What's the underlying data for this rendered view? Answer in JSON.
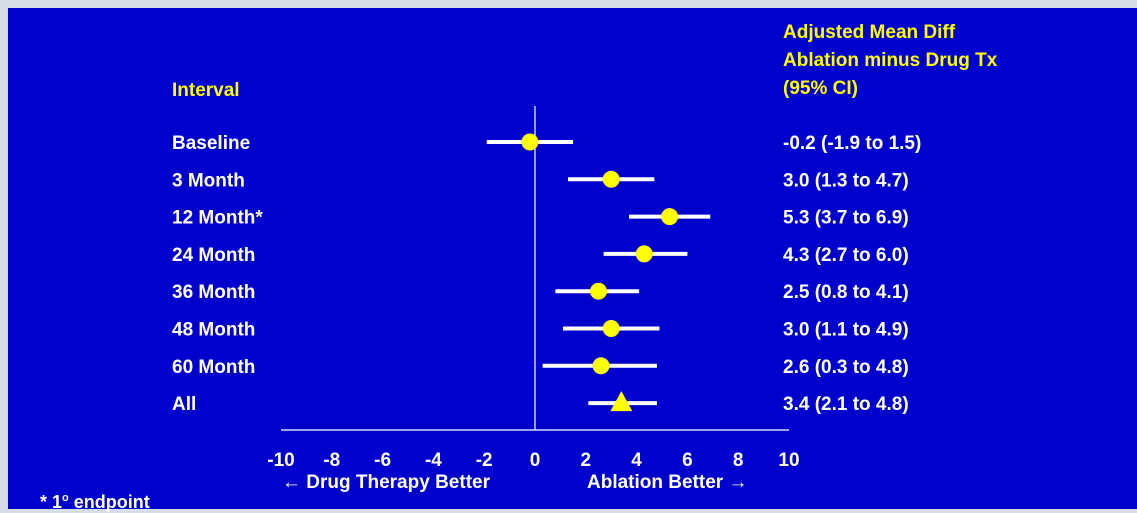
{
  "chart_data": {
    "type": "forest",
    "headers": {
      "interval": "Interval",
      "result_lines": [
        "Adjusted Mean Diff",
        "Ablation minus Drug Tx",
        "(95% CI)"
      ]
    },
    "rows": [
      {
        "label": "Baseline",
        "estimate": -0.2,
        "lower": -1.9,
        "upper": 1.5,
        "text": "-0.2 (-1.9 to 1.5)",
        "marker": "circle"
      },
      {
        "label": "3 Month",
        "estimate": 3.0,
        "lower": 1.3,
        "upper": 4.7,
        "text": "3.0 (1.3 to 4.7)",
        "marker": "circle"
      },
      {
        "label": "12 Month*",
        "estimate": 5.3,
        "lower": 3.7,
        "upper": 6.9,
        "text": "5.3 (3.7 to 6.9)",
        "marker": "circle"
      },
      {
        "label": "24 Month",
        "estimate": 4.3,
        "lower": 2.7,
        "upper": 6.0,
        "text": "4.3 (2.7 to 6.0)",
        "marker": "circle"
      },
      {
        "label": "36 Month",
        "estimate": 2.5,
        "lower": 0.8,
        "upper": 4.1,
        "text": "2.5 (0.8 to 4.1)",
        "marker": "circle"
      },
      {
        "label": "48 Month",
        "estimate": 3.0,
        "lower": 1.1,
        "upper": 4.9,
        "text": "3.0 (1.1 to 4.9)",
        "marker": "circle"
      },
      {
        "label": "60 Month",
        "estimate": 2.6,
        "lower": 0.3,
        "upper": 4.8,
        "text": "2.6 (0.3 to 4.8)",
        "marker": "circle"
      },
      {
        "label": "All",
        "estimate": 3.4,
        "lower": 2.1,
        "upper": 4.8,
        "text": "3.4 (2.1 to 4.8)",
        "marker": "triangle"
      }
    ],
    "x_ticks": [
      -10,
      -8,
      -6,
      -4,
      -2,
      0,
      2,
      4,
      6,
      8,
      10
    ],
    "xlim": [
      -10,
      10
    ],
    "xlabel_left": "← Drug Therapy Better",
    "xlabel_right": "Ablation Better →",
    "reference_line": 0,
    "grid": false
  },
  "footnote": {
    "prefix": "* 1",
    "superscript": "o",
    "suffix": " endpoint"
  },
  "colors": {
    "background": "#0000cc",
    "header_text": "#ffff00",
    "label_text": "#ffffff",
    "ci_line": "#ffffff",
    "marker": "#ffff00"
  }
}
